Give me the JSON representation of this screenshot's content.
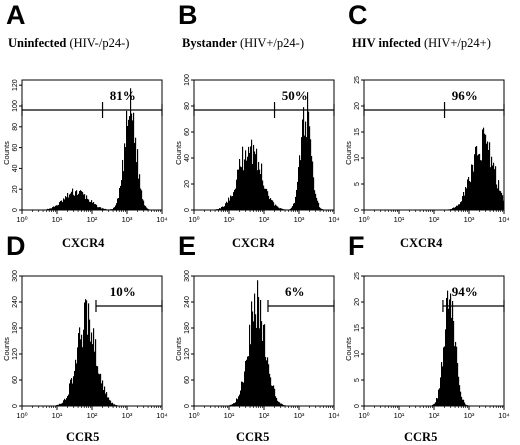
{
  "columns": [
    {
      "letter": "A",
      "title_bold": "Uninfected",
      "title_rest": "(HIV-/p24-)"
    },
    {
      "letter": "B",
      "title_bold": "Bystander",
      "title_rest": "(HIV+/p24-)"
    },
    {
      "letter": "C",
      "title_bold": "HIV infected",
      "title_rest": "(HIV+/p24+)"
    }
  ],
  "chart_data": [
    {
      "panel": "A",
      "type": "area",
      "xlabel": "CXCR4",
      "ylabel": "Counts",
      "x_scale": "log",
      "xlim": [
        1,
        10000
      ],
      "x_ticks": [
        "10⁰",
        "10¹",
        "10²",
        "10³",
        "10⁴"
      ],
      "ylim": [
        0,
        125
      ],
      "y_ticks": [
        0,
        20,
        40,
        60,
        80,
        100,
        120
      ],
      "gate": {
        "from": 1,
        "to": 10000,
        "marker": 200,
        "percent": "81%"
      },
      "peaks": [
        {
          "center_log10": 1.55,
          "width_log10": 0.34,
          "height": 18
        },
        {
          "center_log10": 3.1,
          "width_log10": 0.17,
          "height": 98
        }
      ]
    },
    {
      "panel": "B",
      "type": "area",
      "xlabel": "CXCR4",
      "ylabel": "Counts",
      "x_scale": "log",
      "xlim": [
        1,
        10000
      ],
      "x_ticks": [
        "10⁰",
        "10¹",
        "10²",
        "10³",
        "10⁴"
      ],
      "ylim": [
        0,
        100
      ],
      "y_ticks": [
        0,
        20,
        40,
        60,
        80,
        100
      ],
      "gate": {
        "from": 1,
        "to": 10000,
        "marker": 200,
        "percent": "50%"
      },
      "peaks": [
        {
          "center_log10": 1.6,
          "width_log10": 0.32,
          "height": 50
        },
        {
          "center_log10": 3.2,
          "width_log10": 0.15,
          "height": 78
        }
      ]
    },
    {
      "panel": "C",
      "type": "area",
      "xlabel": "CXCR4",
      "ylabel": "Counts",
      "x_scale": "log",
      "xlim": [
        1,
        10000
      ],
      "x_ticks": [
        "10⁰",
        "10¹",
        "10²",
        "10³",
        "10⁴"
      ],
      "ylim": [
        0,
        25
      ],
      "y_ticks": [
        0,
        5,
        10,
        15,
        20,
        25
      ],
      "gate": {
        "from": 1,
        "to": 10000,
        "marker": 200,
        "percent": "96%"
      },
      "peaks": [
        {
          "center_log10": 3.4,
          "width_log10": 0.32,
          "height": 13
        }
      ]
    },
    {
      "panel": "D",
      "type": "area",
      "xlabel": "CCR5",
      "ylabel": "Counts",
      "x_scale": "log",
      "xlim": [
        1,
        10000
      ],
      "x_ticks": [
        "10⁰",
        "10¹",
        "10²",
        "10³",
        "10⁴"
      ],
      "ylim": [
        0,
        300
      ],
      "y_ticks": [
        0,
        60,
        120,
        180,
        240,
        300
      ],
      "gate": {
        "from": 130,
        "to": 10000,
        "percent": "10%"
      },
      "peaks": [
        {
          "center_log10": 1.85,
          "width_log10": 0.28,
          "height": 205
        }
      ]
    },
    {
      "panel": "E",
      "type": "area",
      "xlabel": "CCR5",
      "ylabel": "Counts",
      "x_scale": "log",
      "xlim": [
        1,
        10000
      ],
      "x_ticks": [
        "10⁰",
        "10¹",
        "10²",
        "10³",
        "10⁴"
      ],
      "ylim": [
        0,
        300
      ],
      "y_ticks": [
        0,
        60,
        120,
        180,
        240,
        300
      ],
      "gate": {
        "from": 130,
        "to": 10000,
        "percent": "6%"
      },
      "peaks": [
        {
          "center_log10": 1.8,
          "width_log10": 0.25,
          "height": 245
        }
      ]
    },
    {
      "panel": "F",
      "type": "area",
      "xlabel": "CCR5",
      "ylabel": "Counts",
      "x_scale": "log",
      "xlim": [
        1,
        10000
      ],
      "x_ticks": [
        "10⁰",
        "10¹",
        "10²",
        "10³",
        "10⁴"
      ],
      "ylim": [
        0,
        25
      ],
      "y_ticks": [
        0,
        5,
        10,
        15,
        20,
        25
      ],
      "gate": {
        "from": 180,
        "to": 10000,
        "percent": "94%"
      },
      "peaks": [
        {
          "center_log10": 2.45,
          "width_log10": 0.16,
          "height": 21
        }
      ]
    }
  ]
}
